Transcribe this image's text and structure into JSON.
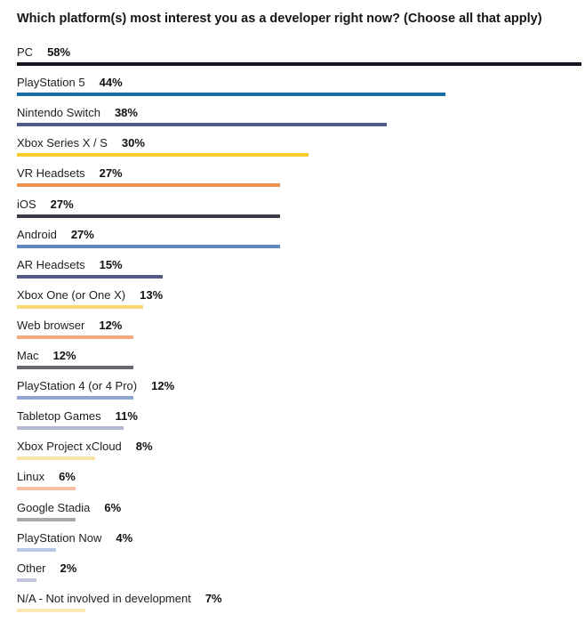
{
  "chart_data": {
    "type": "bar",
    "orientation": "horizontal",
    "title": "Which platform(s) most interest you as a developer right now? (Choose all that apply)",
    "xlabel": "",
    "ylabel": "",
    "xlim": [
      0,
      58
    ],
    "grid": false,
    "value_suffix": "%",
    "categories": [
      "PC",
      "PlayStation 5",
      "Nintendo Switch",
      "Xbox Series X / S",
      "VR Headsets",
      "iOS",
      "Android",
      "AR Headsets",
      "Xbox One (or One X)",
      "Web browser",
      "Mac",
      "PlayStation 4 (or 4 Pro)",
      "Tabletop Games",
      "Xbox Project xCloud",
      "Linux",
      "Google Stadia",
      "PlayStation Now",
      "Other",
      "N/A - Not involved in development"
    ],
    "values": [
      58,
      44,
      38,
      30,
      27,
      27,
      27,
      15,
      13,
      12,
      12,
      12,
      11,
      8,
      6,
      6,
      4,
      2,
      7
    ],
    "colors": [
      "#13141f",
      "#1a6aa3",
      "#525a88",
      "#f6cc2a",
      "#f0904a",
      "#3b3b48",
      "#5e88c2",
      "#525a88",
      "#f7d873",
      "#f5aa7e",
      "#666670",
      "#8fa5d5",
      "#b5b8d2",
      "#fae3a6",
      "#f8c3a4",
      "#a8a8ae",
      "#b8c9e8",
      "#c2c4dc",
      "#fbe7b5"
    ]
  }
}
